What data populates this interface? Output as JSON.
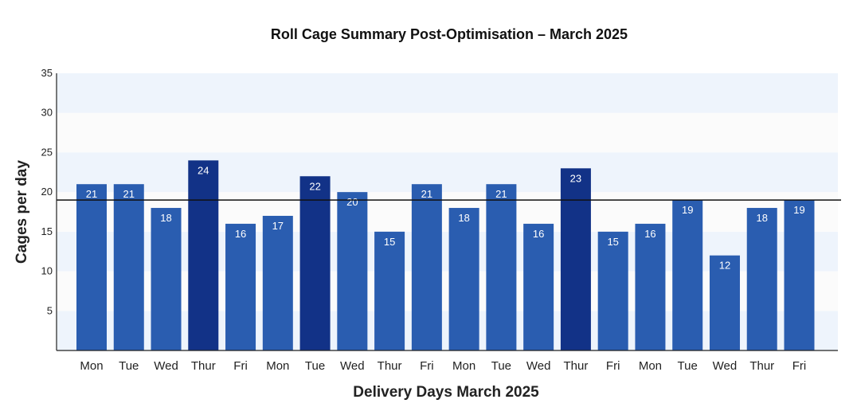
{
  "chart_data": {
    "type": "bar",
    "title": "Roll Cage Summary Post-Optimisation – March 2025",
    "xlabel": "Delivery Days March 2025",
    "ylabel": "Cages per day",
    "ylim": [
      0,
      35
    ],
    "yticks": [
      "5",
      "10",
      "15",
      "20",
      "25",
      "30",
      "35"
    ],
    "categories": [
      "Mon",
      "Tue",
      "Wed",
      "Thur",
      "Fri",
      "Mon",
      "Tue",
      "Wed",
      "Thur",
      "Fri",
      "Mon",
      "Tue",
      "Wed",
      "Thur",
      "Fri",
      "Mon",
      "Tue",
      "Wed",
      "Thur",
      "Fri"
    ],
    "values": [
      21,
      21,
      18,
      24,
      16,
      17,
      22,
      20,
      15,
      21,
      18,
      21,
      16,
      23,
      15,
      16,
      19,
      12,
      18,
      19
    ],
    "reference_line": 19,
    "grid": "alternating horizontal bands",
    "colors": {
      "bar": "#2a5db0",
      "bar_highlight": "#123287",
      "band_light": "#eef4fc",
      "band_alt": "#fbfbfb",
      "reference_line": "#111111"
    }
  }
}
